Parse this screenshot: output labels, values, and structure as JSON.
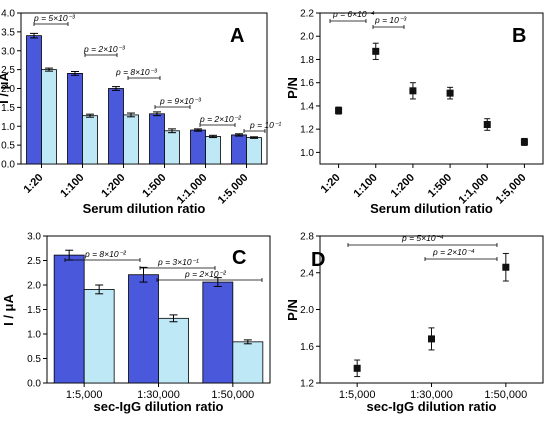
{
  "colors": {
    "dark_bar": "#4a58dc",
    "light_bar": "#bfe8f6",
    "axis": "#000000",
    "marker": "#111111"
  },
  "chart_data": [
    {
      "panel_label": "A",
      "type": "bar",
      "xlabel": "Serum dilution ratio",
      "ylabel": "I / μA",
      "ylim": [
        0,
        4.0
      ],
      "yticks": [
        "0.0",
        "0.5",
        "1.0",
        "1.5",
        "2.0",
        "2.5",
        "3.0",
        "3.5",
        "4.0"
      ],
      "categories": [
        "1:20",
        "1:100",
        "1:200",
        "1:500",
        "1:1,000",
        "1:5,000"
      ],
      "series": [
        {
          "values": [
            3.4,
            2.4,
            2.0,
            1.33,
            0.9,
            0.77
          ],
          "errors": [
            0.06,
            0.05,
            0.05,
            0.05,
            0.03,
            0.03
          ]
        },
        {
          "values": [
            2.5,
            1.28,
            1.3,
            0.88,
            0.73,
            0.7
          ],
          "errors": [
            0.04,
            0.04,
            0.05,
            0.05,
            0.03,
            0.02
          ]
        }
      ],
      "annotations": [
        "p = 5×10⁻³",
        "p = 2×10⁻³",
        "p = 8×10⁻³",
        "p = 9×10⁻³",
        "p = 2×10⁻²",
        "p = 10⁻¹"
      ]
    },
    {
      "panel_label": "B",
      "type": "scatter",
      "xlabel": "Serum dilution ratio",
      "ylabel": "P/N",
      "ylim": [
        0.9,
        2.2
      ],
      "yticks": [
        "1.0",
        "1.2",
        "1.4",
        "1.6",
        "1.8",
        "2.0",
        "2.2"
      ],
      "categories": [
        "1:20",
        "1:100",
        "1:200",
        "1:500",
        "1:1,000",
        "1:5,000"
      ],
      "values": [
        1.36,
        1.87,
        1.53,
        1.51,
        1.24,
        1.09
      ],
      "errors": [
        0.03,
        0.07,
        0.07,
        0.05,
        0.05,
        0.03
      ],
      "annotations": [
        "p = 6×10⁻⁴",
        "p = 10⁻³"
      ]
    },
    {
      "panel_label": "C",
      "type": "bar",
      "xlabel": "sec-IgG dilution ratio",
      "ylabel": "I / μA",
      "ylim": [
        0,
        3.0
      ],
      "yticks": [
        "0.0",
        "0.5",
        "1.0",
        "1.5",
        "2.0",
        "2.5",
        "3.0"
      ],
      "categories": [
        "1:5,000",
        "1:30,000",
        "1:50,000"
      ],
      "series": [
        {
          "values": [
            2.61,
            2.21,
            2.06
          ],
          "errors": [
            0.1,
            0.15,
            0.09
          ]
        },
        {
          "values": [
            1.91,
            1.32,
            0.84
          ],
          "errors": [
            0.09,
            0.07,
            0.04
          ]
        }
      ],
      "annotations": [
        "p = 8×10⁻²",
        "p = 3×10⁻¹",
        "p = 2×10⁻²"
      ]
    },
    {
      "panel_label": "D",
      "type": "scatter",
      "xlabel": "sec-IgG dilution ratio",
      "ylabel": "P/N",
      "ylim": [
        1.2,
        2.8
      ],
      "yticks": [
        "1.2",
        "1.6",
        "2.0",
        "2.4",
        "2.8"
      ],
      "categories": [
        "1:5,000",
        "1:30,000",
        "1:50,000"
      ],
      "values": [
        1.36,
        1.68,
        2.46
      ],
      "errors": [
        0.09,
        0.12,
        0.15
      ],
      "annotations": [
        "p = 5×10⁻⁴",
        "p = 2×10⁻⁴"
      ]
    }
  ]
}
